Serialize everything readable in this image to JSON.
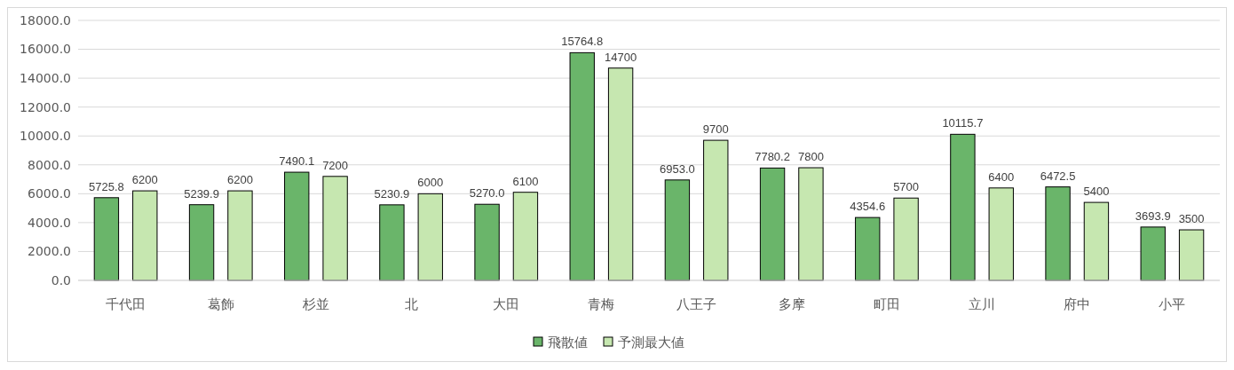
{
  "chart_data": {
    "type": "bar",
    "categories": [
      "千代田",
      "葛飾",
      "杉並",
      "北",
      "大田",
      "青梅",
      "八王子",
      "多摩",
      "町田",
      "立川",
      "府中",
      "小平"
    ],
    "series": [
      {
        "name": "飛散値",
        "color": "#6ab56a",
        "values": [
          5725.8,
          5239.9,
          7490.1,
          5230.9,
          5270.0,
          15764.8,
          6953.0,
          7780.2,
          4354.6,
          10115.7,
          6472.5,
          3693.9
        ],
        "value_labels": [
          "5725.8",
          "5239.9",
          "7490.1",
          "5230.9",
          "5270.0",
          "15764.8",
          "6953.0",
          "7780.2",
          "4354.6",
          "10115.7",
          "6472.5",
          "3693.9"
        ]
      },
      {
        "name": "予測最大値",
        "color": "#c6e7b0",
        "values": [
          6200,
          6200,
          7200,
          6000,
          6100,
          14700,
          9700,
          7800,
          5700,
          6400,
          5400,
          3500
        ],
        "value_labels": [
          "6200",
          "6200",
          "7200",
          "6000",
          "6100",
          "14700",
          "9700",
          "7800",
          "5700",
          "6400",
          "5400",
          "3500"
        ]
      }
    ],
    "ylim": [
      0,
      18000
    ],
    "yticks": [
      {
        "value": 0,
        "label": "0.0"
      },
      {
        "value": 2000,
        "label": "2000.0"
      },
      {
        "value": 4000,
        "label": "4000.0"
      },
      {
        "value": 6000,
        "label": "6000.0"
      },
      {
        "value": 8000,
        "label": "8000.0"
      },
      {
        "value": 10000,
        "label": "10000.0"
      },
      {
        "value": 12000,
        "label": "12000.0"
      },
      {
        "value": 14000,
        "label": "14000.0"
      },
      {
        "value": 16000,
        "label": "16000.0"
      },
      {
        "value": 18000,
        "label": "18000.0"
      }
    ],
    "grid": "y",
    "legend": "bottom"
  }
}
